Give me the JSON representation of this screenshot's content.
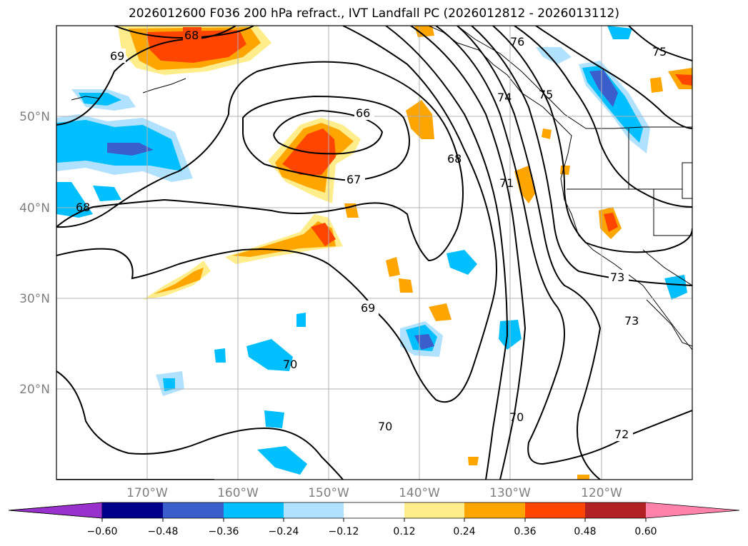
{
  "title": "2026012600 F036 200 hPa refract., IVT Landfall PC (2026012812 - 2026013112)",
  "map": {
    "lat_labels": [
      "50°N",
      "40°N",
      "30°N",
      "20°N"
    ],
    "lon_labels": [
      "170°W",
      "160°W",
      "150°W",
      "140°W",
      "130°W",
      "120°W"
    ],
    "contour_labels": [
      "68",
      "69",
      "66",
      "67",
      "68",
      "68",
      "69",
      "70",
      "70",
      "70",
      "71",
      "72",
      "73",
      "73",
      "74",
      "75",
      "75",
      "76"
    ]
  },
  "colorbar": {
    "colors": [
      "#9932cc",
      "#00008b",
      "#3a5fcd",
      "#00bfff",
      "#b0e2ff",
      "#ffffff",
      "#ffec8b",
      "#ffa500",
      "#ff4500",
      "#b22222",
      "#ff82ab"
    ],
    "ticks": [
      "−0.60",
      "−0.48",
      "−0.36",
      "−0.24",
      "−0.12",
      "0.12",
      "0.24",
      "0.36",
      "0.48",
      "0.60"
    ]
  }
}
